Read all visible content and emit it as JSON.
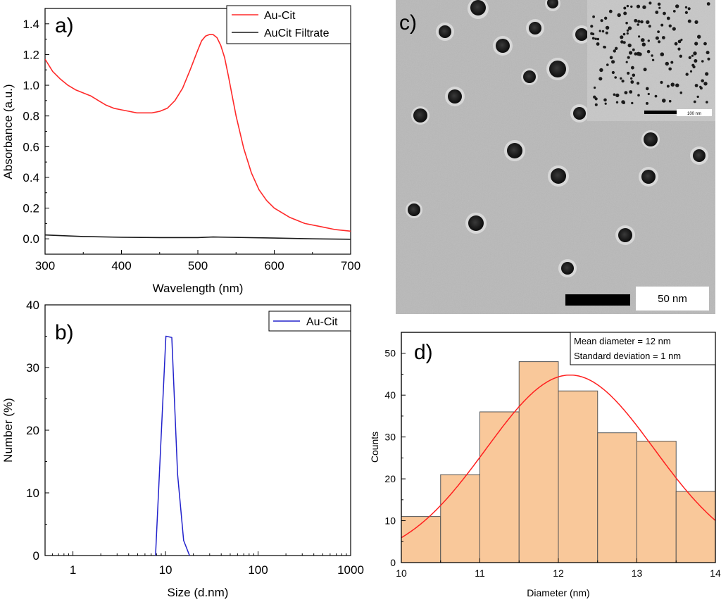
{
  "panel_labels": {
    "a": "a)",
    "b": "b)",
    "c": "c)",
    "d": "d)"
  },
  "chart_data": [
    {
      "id": "a",
      "type": "line",
      "xlabel": "Wavelength (nm)",
      "ylabel": "Absorbance (a.u.)",
      "xlim": [
        300,
        700
      ],
      "ylim": [
        -0.1,
        1.5
      ],
      "xticks": [
        300,
        400,
        500,
        600,
        700
      ],
      "yticks": [
        0.0,
        0.2,
        0.4,
        0.6,
        0.8,
        1.0,
        1.2,
        1.4
      ],
      "yticklabels": [
        "0.0",
        "0.2",
        "0.4",
        "0.6",
        "0.8",
        "1.0",
        "1.2",
        "1.4"
      ],
      "legend_position": "top-right",
      "series": [
        {
          "name": "Au-Cit",
          "color": "#ff2a2a",
          "x": [
            300,
            310,
            320,
            330,
            340,
            350,
            360,
            370,
            380,
            390,
            400,
            410,
            420,
            430,
            440,
            450,
            460,
            470,
            480,
            490,
            500,
            505,
            510,
            515,
            520,
            525,
            530,
            535,
            540,
            545,
            550,
            560,
            570,
            580,
            590,
            600,
            620,
            640,
            660,
            680,
            700
          ],
          "y": [
            1.17,
            1.09,
            1.04,
            1.0,
            0.97,
            0.95,
            0.93,
            0.9,
            0.87,
            0.85,
            0.84,
            0.83,
            0.82,
            0.82,
            0.82,
            0.83,
            0.85,
            0.9,
            0.98,
            1.1,
            1.23,
            1.29,
            1.32,
            1.33,
            1.33,
            1.31,
            1.26,
            1.18,
            1.06,
            0.93,
            0.8,
            0.59,
            0.43,
            0.32,
            0.25,
            0.2,
            0.14,
            0.1,
            0.08,
            0.06,
            0.05
          ]
        },
        {
          "name": "AuCit Filtrate",
          "color": "#1a1a1a",
          "x": [
            300,
            350,
            400,
            450,
            500,
            520,
            540,
            600,
            650,
            700
          ],
          "y": [
            0.025,
            0.015,
            0.01,
            0.008,
            0.008,
            0.012,
            0.01,
            0.005,
            0.0,
            -0.003
          ]
        }
      ]
    },
    {
      "id": "b",
      "type": "line",
      "xscale": "log",
      "xlabel": "Size (d.nm)",
      "ylabel": "Number (%)",
      "xlim": [
        0.5,
        1000
      ],
      "ylim": [
        0,
        40
      ],
      "xticks": [
        1,
        10,
        100,
        1000
      ],
      "xticklabels": [
        "1",
        "10",
        "100",
        "1000"
      ],
      "yticks": [
        0,
        10,
        20,
        30,
        40
      ],
      "yticklabels": [
        "0",
        "10",
        "20",
        "30",
        "40"
      ],
      "legend_position": "top-right",
      "series": [
        {
          "name": "Au-Cit",
          "color": "#2222cc",
          "x": [
            7.8,
            10.1,
            11.7,
            13.5,
            15.7,
            18.2
          ],
          "y": [
            0,
            35.0,
            34.8,
            13.0,
            2.4,
            0
          ]
        }
      ]
    },
    {
      "id": "d",
      "type": "bar",
      "xlabel": "Diameter (nm)",
      "ylabel": "Counts",
      "xlim": [
        10,
        14
      ],
      "ylim": [
        0,
        55
      ],
      "xticks": [
        10,
        11,
        12,
        13,
        14
      ],
      "xticklabels": [
        "10",
        "11",
        "12",
        "13",
        "14"
      ],
      "yticks": [
        0,
        10,
        20,
        30,
        40,
        50
      ],
      "yticklabels": [
        "0",
        "10",
        "20",
        "30",
        "40",
        "50"
      ],
      "bin_edges": [
        10.0,
        10.5,
        11.0,
        11.5,
        12.0,
        12.5,
        13.0,
        13.5,
        14.0
      ],
      "values": [
        11,
        21,
        36,
        48,
        41,
        31,
        29,
        17
      ],
      "bar_color": "#f9c89a",
      "fit": {
        "type": "gaussian",
        "mean": 12.15,
        "sigma": 1.07,
        "peak": 44.8,
        "color": "#ff2020"
      },
      "annotation": [
        "Mean diameter = 12 nm",
        "Standard deviation = 1 nm"
      ]
    }
  ],
  "tem_image": {
    "scale_bar_label": "50 nm",
    "inset_scale_label": "100 nm"
  }
}
